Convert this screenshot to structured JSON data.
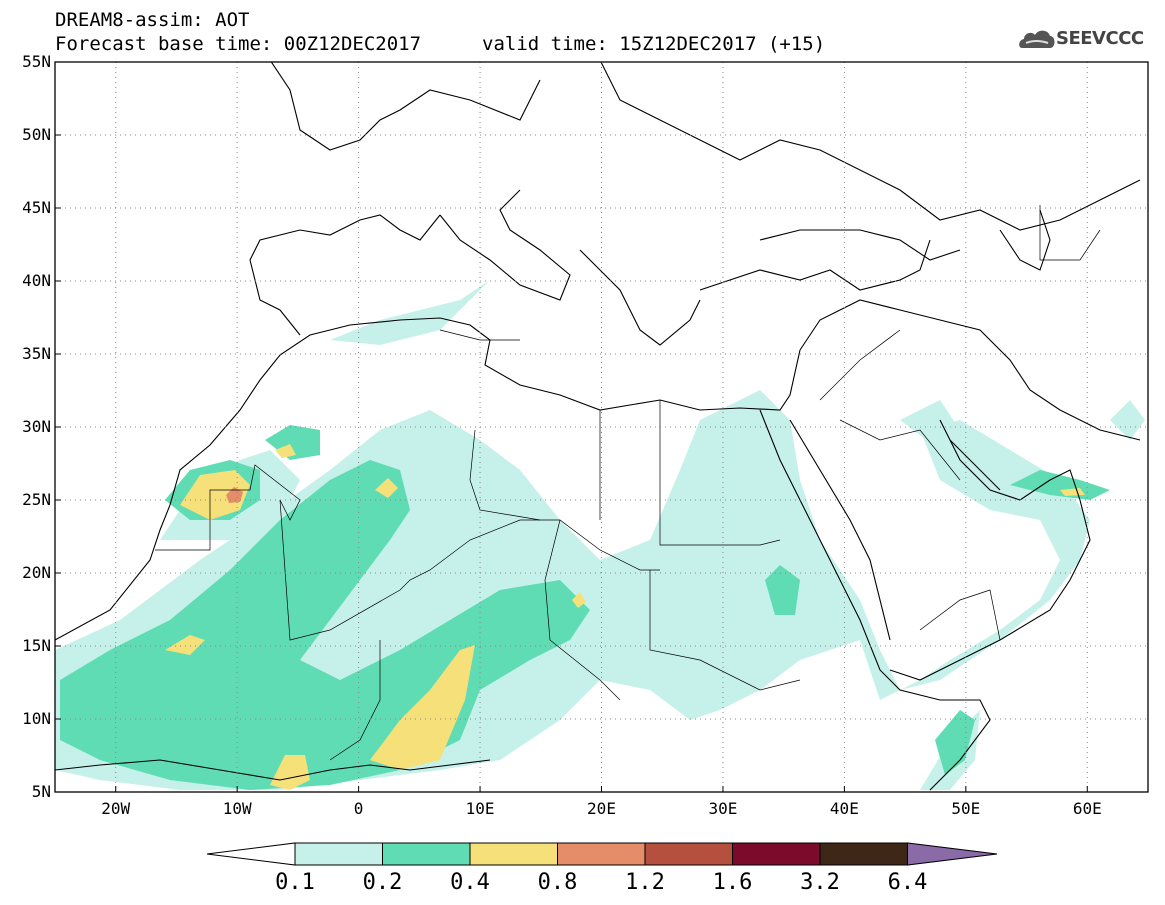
{
  "header": {
    "title": "DREAM8-assim: AOT",
    "base_time": "Forecast base time: 00Z12DEC2017",
    "valid_time": "valid time: 15Z12DEC2017 (+15)",
    "logo_text": "SEEVCCC",
    "logo_icon": "cloud-logo-icon"
  },
  "map": {
    "lon_range": [
      -25,
      65
    ],
    "lat_range": [
      5,
      55
    ],
    "lat_ticks": [
      "5N",
      "10N",
      "15N",
      "20N",
      "25N",
      "30N",
      "35N",
      "40N",
      "45N",
      "50N",
      "55N"
    ],
    "lon_ticks": [
      "20W",
      "10W",
      "0",
      "10E",
      "20E",
      "30E",
      "40E",
      "50E",
      "60E"
    ],
    "grid": "dotted"
  },
  "colorbar": {
    "labels": [
      "0.1",
      "0.2",
      "0.4",
      "0.8",
      "1.2",
      "1.6",
      "3.2",
      "6.4"
    ],
    "colors": [
      "#ffffff",
      "#c6f1ea",
      "#5fdcb4",
      "#f5e07a",
      "#e58c68",
      "#b5503e",
      "#7c0a2a",
      "#3e2716",
      "#8b6aa8"
    ]
  },
  "field_colors": {
    "low": "#c6f1ea",
    "mid": "#5fdcb4",
    "high": "#f5e07a",
    "peak": "#e58c68"
  }
}
